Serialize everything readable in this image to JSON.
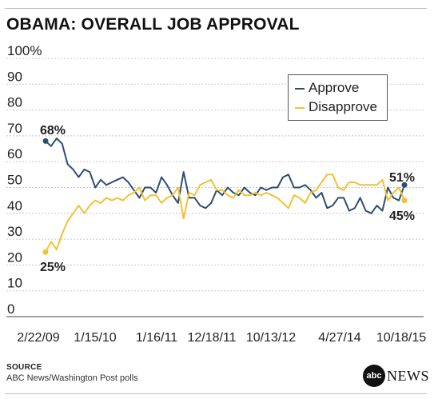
{
  "header": {
    "title": "OBAMA: OVERALL JOB APPROVAL"
  },
  "source": {
    "heading": "SOURCE",
    "text": "ABC News/Washington Post polls"
  },
  "logo": {
    "circle_text": "abc",
    "text": "NEWS"
  },
  "legend": {
    "approve": "Approve",
    "disapprove": "Disapprove"
  },
  "colors": {
    "approve": "#2e4e70",
    "disapprove": "#f1c232",
    "grid": "#c8c8c8"
  },
  "chart_data": {
    "type": "line",
    "title": "OBAMA: OVERALL JOB APPROVAL",
    "ylim": [
      0,
      100
    ],
    "y_ticks": [
      "0",
      "10",
      "20",
      "30",
      "40",
      "50",
      "60",
      "70",
      "80",
      "90",
      "100%"
    ],
    "x_tick_labels": [
      "2/22/09",
      "1/15/10",
      "1/16/11",
      "12/18/11",
      "10/13/12",
      "4/27/14",
      "10/18/15"
    ],
    "grid": true,
    "legend_position": "top-right",
    "end_labels": {
      "approve_start": "68%",
      "disapprove_start": "25%",
      "approve_end": "51%",
      "disapprove_end": "45%"
    },
    "series": [
      {
        "name": "Approve",
        "values": [
          68,
          66,
          69,
          67,
          59,
          57,
          54,
          57,
          56,
          50,
          53,
          51,
          52,
          53,
          54,
          52,
          49,
          46,
          50,
          50,
          48,
          54,
          51,
          47,
          44,
          56,
          46,
          46,
          43,
          42,
          44,
          49,
          47,
          50,
          48,
          47,
          50,
          48,
          47,
          50,
          49,
          50,
          50,
          54,
          55,
          50,
          50,
          51,
          49,
          46,
          48,
          42,
          43,
          46,
          46,
          41,
          42,
          46,
          41,
          40,
          43,
          41,
          50,
          46,
          45,
          51
        ]
      },
      {
        "name": "Disapprove",
        "values": [
          25,
          29,
          26,
          32,
          37,
          40,
          43,
          40,
          43,
          45,
          44,
          46,
          45,
          46,
          45,
          47,
          48,
          50,
          45,
          47,
          47,
          44,
          46,
          47,
          50,
          38,
          48,
          47,
          51,
          52,
          53,
          49,
          49,
          47,
          46,
          49,
          47,
          47,
          48,
          47,
          48,
          47,
          46,
          44,
          42,
          47,
          46,
          44,
          48,
          49,
          52,
          55,
          55,
          50,
          49,
          52,
          52,
          51,
          51,
          51,
          51,
          53,
          45,
          48,
          50,
          45
        ]
      }
    ]
  }
}
